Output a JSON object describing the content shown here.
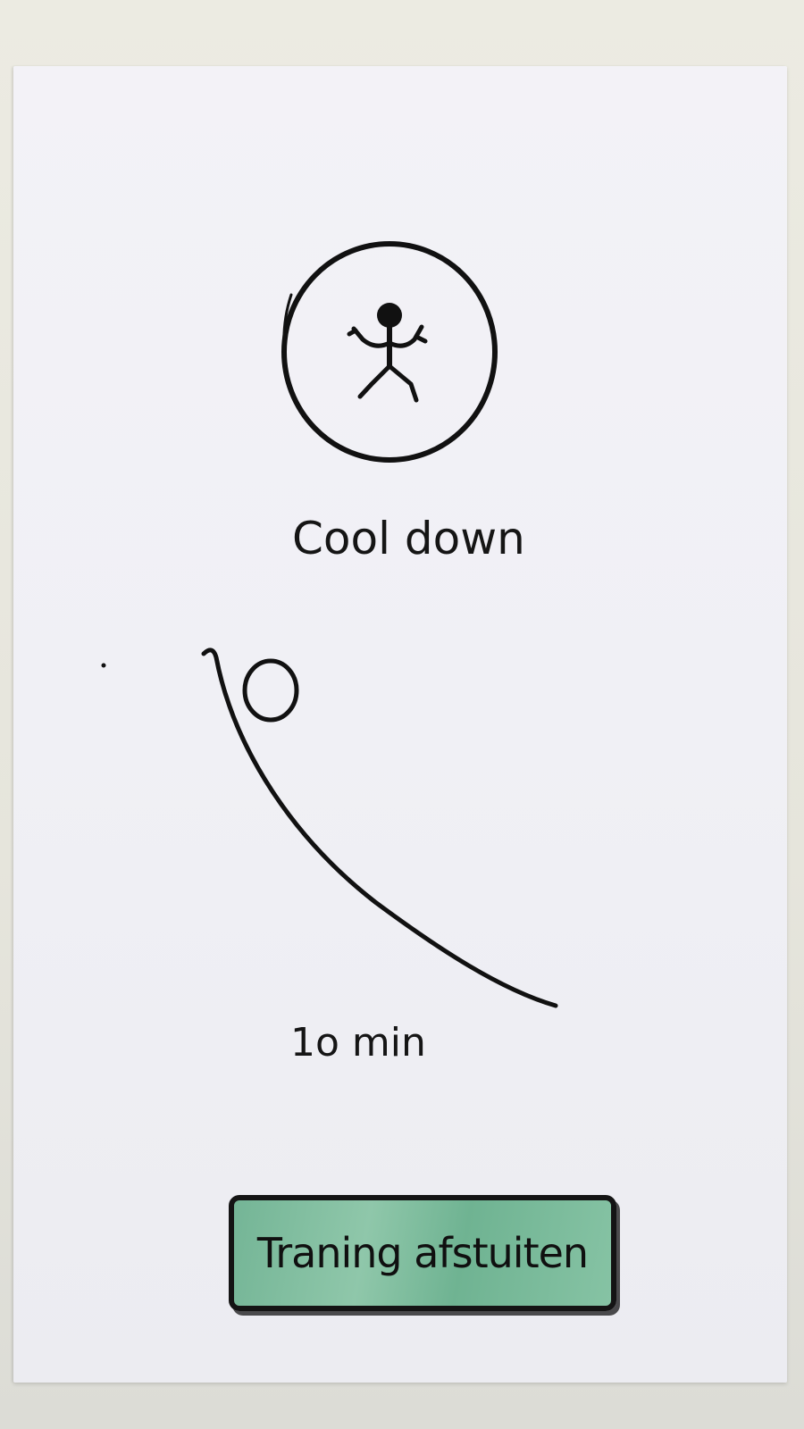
{
  "screen": {
    "title": "Cool down",
    "duration_label": "1o min",
    "activity_icon": "stick-figure-icon",
    "timer_icon": "timer-arc-icon"
  },
  "actions": {
    "finish_label": "Traning afstuiten"
  },
  "colors": {
    "paper": "#f1f1f6",
    "ink": "#111111",
    "button_fill": "#7fbf9f",
    "background": "#e9e7dc"
  }
}
